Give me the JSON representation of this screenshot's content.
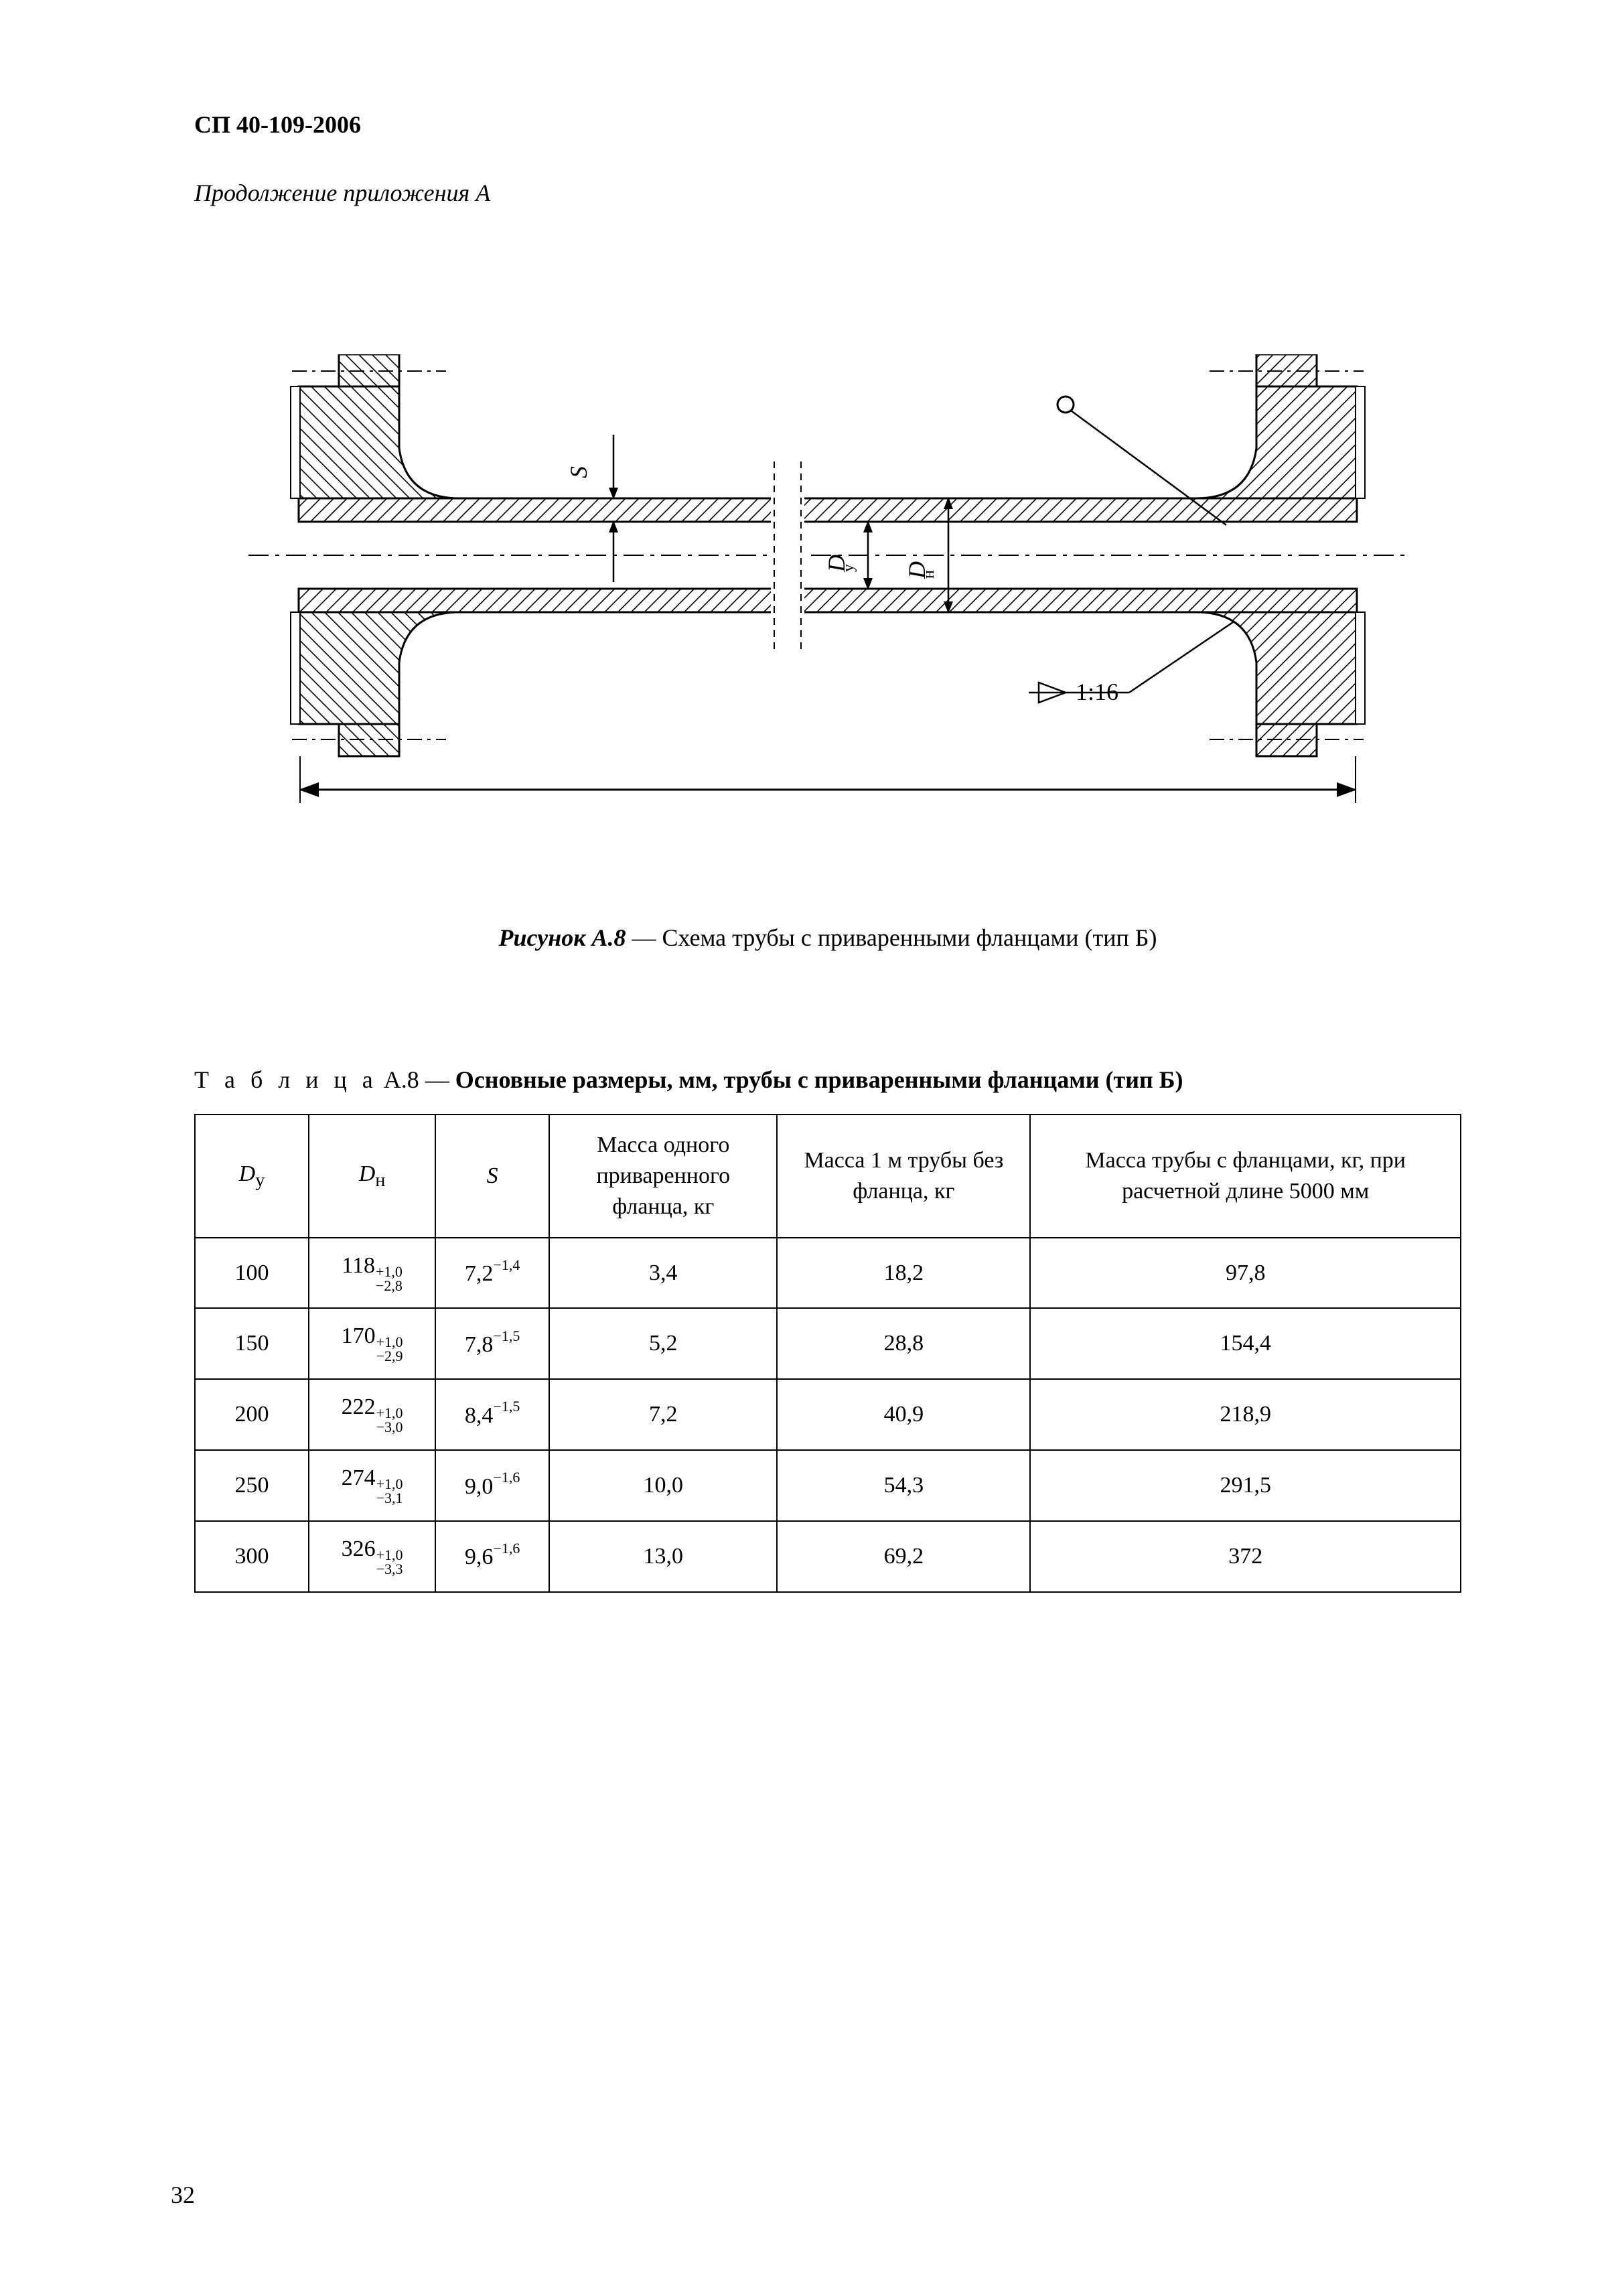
{
  "header": {
    "doc_id": "СП 40-109-2006",
    "continuation": "Продолжение приложения А"
  },
  "figure": {
    "caption_lead": "Рисунок А.8",
    "caption_dash": " — ",
    "caption_body": "Схема трубы с приваренными фланцами (тип Б)",
    "labels": {
      "s": "S",
      "dy": "Dу",
      "dn": "Dн",
      "taper": "1:16"
    },
    "colors": {
      "stroke": "#000000",
      "bg": "#ffffff"
    }
  },
  "table": {
    "title_prefix": "Т а б л и ц а",
    "title_id": "  А.8 — ",
    "title_bold": "Основные размеры, мм, трубы с приваренными фланцами (тип Б)",
    "columns": [
      {
        "key": "dy",
        "html": "<span class=\"ital\">D</span><sub>у</sub>"
      },
      {
        "key": "dn",
        "html": "<span class=\"ital\">D</span><sub>н</sub>"
      },
      {
        "key": "s",
        "html": "<span class=\"ital\">S</span>"
      },
      {
        "key": "m1",
        "text": "Масса одного приваренного фланца, кг"
      },
      {
        "key": "m2",
        "text": "Масса 1 м трубы без фланца, кг"
      },
      {
        "key": "m3",
        "text": "Масса трубы с фланцами, кг, при расчетной длине 5000 мм"
      }
    ],
    "rows": [
      {
        "dy": "100",
        "dn_base": "118",
        "dn_up": "+1,0",
        "dn_lo": "−2,8",
        "s_base": "7,2",
        "s_tol": "−1,4",
        "m1": "3,4",
        "m2": "18,2",
        "m3": "97,8"
      },
      {
        "dy": "150",
        "dn_base": "170",
        "dn_up": "+1,0",
        "dn_lo": "−2,9",
        "s_base": "7,8",
        "s_tol": "−1,5",
        "m1": "5,2",
        "m2": "28,8",
        "m3": "154,4"
      },
      {
        "dy": "200",
        "dn_base": "222",
        "dn_up": "+1,0",
        "dn_lo": "−3,0",
        "s_base": "8,4",
        "s_tol": "−1,5",
        "m1": "7,2",
        "m2": "40,9",
        "m3": "218,9"
      },
      {
        "dy": "250",
        "dn_base": "274",
        "dn_up": "+1,0",
        "dn_lo": "−3,1",
        "s_base": "9,0",
        "s_tol": "−1,6",
        "m1": "10,0",
        "m2": "54,3",
        "m3": "291,5"
      },
      {
        "dy": "300",
        "dn_base": "326",
        "dn_up": "+1,0",
        "dn_lo": "−3,3",
        "s_base": "9,6",
        "s_tol": "−1,6",
        "m1": "13,0",
        "m2": "69,2",
        "m3": "372"
      }
    ]
  },
  "page_number": "32"
}
